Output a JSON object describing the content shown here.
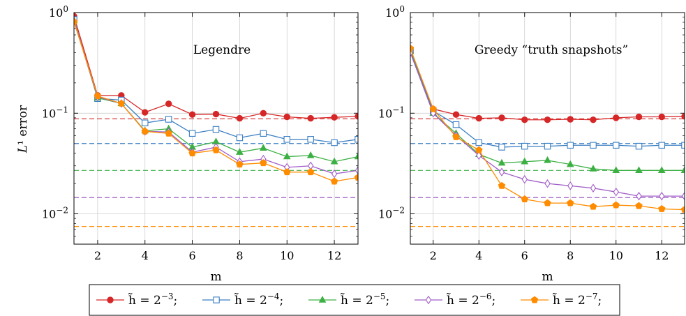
{
  "chart_data": {
    "type": "line",
    "shared": {
      "xlabel": "m",
      "ylabel": "L¹ error",
      "yscale": "log",
      "ylim": [
        0.005,
        1.0
      ],
      "xlim": [
        1,
        13
      ],
      "xticks": [
        2,
        4,
        6,
        8,
        10,
        12
      ],
      "xtick_labels": [
        "2",
        "4",
        "6",
        "8",
        "10",
        "12"
      ],
      "yticks": [
        0.01,
        0.1,
        1.0
      ],
      "ytick_labels": [
        {
          "base": "10",
          "exp": "−2"
        },
        {
          "base": "10",
          "exp": "−1"
        },
        {
          "base": "10",
          "exp": "0"
        }
      ],
      "grid": true,
      "legend_placement": "bottom-center"
    },
    "legend": [
      {
        "key": "s3",
        "label_prefix": "h̃ = 2",
        "exp": "−3",
        "suffix": ";",
        "color": "#d62728",
        "marker": "circle"
      },
      {
        "key": "s4",
        "label_prefix": "h̃ = 2",
        "exp": "−4",
        "suffix": ";",
        "color": "#3b7fc4",
        "marker": "square"
      },
      {
        "key": "s5",
        "label_prefix": "h̃ = 2",
        "exp": "−5",
        "suffix": ";",
        "color": "#3cb043",
        "marker": "triangle"
      },
      {
        "key": "s6",
        "label_prefix": "h̃ = 2",
        "exp": "−6",
        "suffix": ";",
        "color": "#a05cc8",
        "marker": "diamond"
      },
      {
        "key": "s7",
        "label_prefix": "h̃ = 2",
        "exp": "−7",
        "suffix": ";",
        "color": "#ff8c00",
        "marker": "pentagon"
      }
    ],
    "panels": [
      {
        "title": "Legendre",
        "x": [
          1,
          2,
          3,
          4,
          5,
          6,
          7,
          8,
          9,
          10,
          11,
          12,
          13
        ],
        "series": [
          {
            "key": "s3",
            "values": [
              0.92,
              0.15,
              0.15,
              0.102,
              0.124,
              0.097,
              0.098,
              0.089,
              0.1,
              0.092,
              0.089,
              0.091,
              0.093
            ]
          },
          {
            "key": "s4",
            "values": [
              0.85,
              0.14,
              0.135,
              0.08,
              0.087,
              0.063,
              0.069,
              0.057,
              0.063,
              0.055,
              0.055,
              0.051,
              0.055
            ]
          },
          {
            "key": "s5",
            "values": [
              0.83,
              0.142,
              0.125,
              0.067,
              0.07,
              0.046,
              0.052,
              0.041,
              0.045,
              0.037,
              0.038,
              0.033,
              0.037
            ]
          },
          {
            "key": "s6",
            "values": [
              0.82,
              0.145,
              0.125,
              0.066,
              0.065,
              0.041,
              0.046,
              0.033,
              0.035,
              0.029,
              0.03,
              0.025,
              0.027
            ]
          },
          {
            "key": "s7",
            "values": [
              0.81,
              0.148,
              0.125,
              0.066,
              0.063,
              0.04,
              0.043,
              0.031,
              0.032,
              0.026,
              0.026,
              0.021,
              0.023
            ]
          }
        ],
        "reference_lines": [
          {
            "key": "s3",
            "y": 0.088
          },
          {
            "key": "s4",
            "y": 0.05
          },
          {
            "key": "s5",
            "y": 0.027
          },
          {
            "key": "s6",
            "y": 0.0145
          },
          {
            "key": "s7",
            "y": 0.0075
          }
        ]
      },
      {
        "title": "Greedy “truth snapshots”",
        "x": [
          1,
          2,
          3,
          4,
          5,
          6,
          7,
          8,
          9,
          10,
          11,
          12,
          13
        ],
        "series": [
          {
            "key": "s3",
            "values": [
              0.4,
              0.11,
              0.097,
              0.089,
              0.09,
              0.086,
              0.086,
              0.087,
              0.086,
              0.09,
              0.092,
              0.092,
              0.093
            ]
          },
          {
            "key": "s4",
            "values": [
              0.42,
              0.105,
              0.077,
              0.051,
              0.046,
              0.047,
              0.047,
              0.048,
              0.048,
              0.048,
              0.047,
              0.048,
              0.048
            ]
          },
          {
            "key": "s5",
            "values": [
              0.41,
              0.1,
              0.063,
              0.039,
              0.032,
              0.033,
              0.034,
              0.031,
              0.028,
              0.027,
              0.027,
              0.027,
              0.027
            ]
          },
          {
            "key": "s6",
            "values": [
              0.4,
              0.1,
              0.06,
              0.038,
              0.026,
              0.022,
              0.02,
              0.019,
              0.018,
              0.0165,
              0.015,
              0.015,
              0.015
            ]
          },
          {
            "key": "s7",
            "values": [
              0.44,
              0.11,
              0.058,
              0.043,
              0.019,
              0.014,
              0.0128,
              0.0128,
              0.0118,
              0.0122,
              0.012,
              0.0112,
              0.011
            ]
          }
        ],
        "reference_lines": [
          {
            "key": "s3",
            "y": 0.088
          },
          {
            "key": "s4",
            "y": 0.05
          },
          {
            "key": "s5",
            "y": 0.027
          },
          {
            "key": "s6",
            "y": 0.0145
          },
          {
            "key": "s7",
            "y": 0.0075
          }
        ]
      }
    ]
  }
}
